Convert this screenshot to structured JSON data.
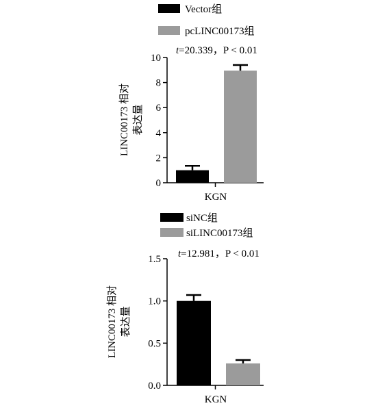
{
  "chart_data": [
    {
      "type": "bar",
      "categories": [
        "KGN"
      ],
      "series": [
        {
          "name": "Vector组",
          "values": [
            1.0
          ],
          "error": [
            0.35
          ],
          "color": "#000000"
        },
        {
          "name": "pcLINC00173组",
          "values": [
            8.95
          ],
          "error": [
            0.45
          ],
          "color": "#9b9b9b"
        }
      ],
      "stat_prefix": "t",
      "stat_text": "=20.339，P < 0.01",
      "ylabel_line1": "LINC00173 相对",
      "ylabel_line2": "表达量",
      "ylim": [
        0,
        10
      ],
      "yticks": [
        "0",
        "2",
        "4",
        "6",
        "8",
        "10"
      ],
      "legend_position": "top"
    },
    {
      "type": "bar",
      "categories": [
        "KGN"
      ],
      "series": [
        {
          "name": "siNC组",
          "values": [
            1.0
          ],
          "error": [
            0.07
          ],
          "color": "#000000"
        },
        {
          "name": "siLINC00173组",
          "values": [
            0.26
          ],
          "error": [
            0.04
          ],
          "color": "#9b9b9b"
        }
      ],
      "stat_prefix": "t",
      "stat_text": "=12.981，P < 0.01",
      "ylabel_line1": "LINC00173 相对",
      "ylabel_line2": "表达量",
      "ylim": [
        0,
        1.5
      ],
      "yticks": [
        "0.0",
        "0.5",
        "1.0",
        "1.5"
      ],
      "legend_position": "top"
    }
  ]
}
